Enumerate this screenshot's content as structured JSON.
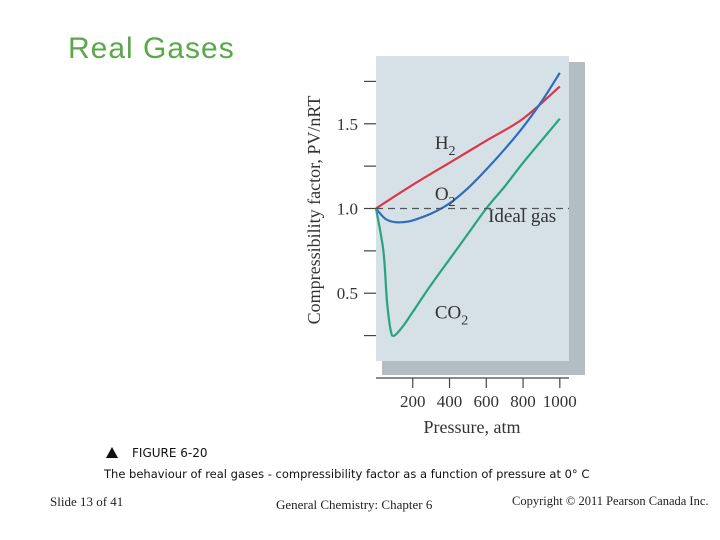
{
  "slide": {
    "title": "Real Gases",
    "figure_label": "FIGURE 6-20",
    "caption": "The behaviour of real gases - compressibility factor as a function of pressure at 0° C",
    "footer_left": "Slide 13 of 41",
    "footer_center": "General Chemistry: Chapter 6",
    "footer_right": "Copyright © 2011 Pearson Canada Inc."
  },
  "colors": {
    "title": "#5aa84a",
    "plot_bg": "#d6e0e7",
    "plot_shadow": "#b3bdc4",
    "H2": "#d93848",
    "O2": "#2a6fb9",
    "CO2": "#27a37f",
    "ideal": "#555555"
  },
  "chart_data": {
    "type": "line",
    "title": "",
    "xlabel": "Pressure, atm",
    "ylabel": "Compressibility factor, PV/nRT",
    "xlim": [
      0,
      1050
    ],
    "ylim": [
      0.1,
      1.9
    ],
    "xticks": [
      200,
      400,
      600,
      800,
      1000
    ],
    "yticks": [
      0.5,
      1.0,
      1.5
    ],
    "ytick_labels": [
      "0.5",
      "1.0",
      "1.5"
    ],
    "ytick_minor": [
      0.25,
      0.75,
      1.25,
      1.75
    ],
    "grid": false,
    "legend": "inline labels",
    "series": [
      {
        "name": "H2",
        "label_main": "H",
        "label_sub": "2",
        "color_key": "H2",
        "label_at": [
          320,
          1.35
        ],
        "x": [
          0,
          200,
          400,
          600,
          800,
          1000
        ],
        "y": [
          1.0,
          1.14,
          1.27,
          1.4,
          1.53,
          1.72
        ]
      },
      {
        "name": "O2",
        "label_main": "O",
        "label_sub": "2",
        "color_key": "O2",
        "label_at": [
          320,
          1.05
        ],
        "x": [
          0,
          50,
          100,
          150,
          200,
          300,
          400,
          500,
          600,
          700,
          800,
          900,
          1000
        ],
        "y": [
          1.0,
          0.94,
          0.92,
          0.92,
          0.93,
          0.97,
          1.03,
          1.12,
          1.23,
          1.35,
          1.48,
          1.63,
          1.8
        ]
      },
      {
        "name": "CO2",
        "label_main": "CO",
        "label_sub": "2",
        "color_key": "CO2",
        "label_at": [
          320,
          0.35
        ],
        "x": [
          0,
          40,
          60,
          80,
          100,
          150,
          200,
          300,
          400,
          500,
          600,
          700,
          800,
          900,
          1000
        ],
        "y": [
          1.0,
          0.75,
          0.45,
          0.28,
          0.25,
          0.31,
          0.39,
          0.55,
          0.7,
          0.85,
          1.0,
          1.13,
          1.27,
          1.4,
          1.53
        ]
      },
      {
        "name": "Ideal gas",
        "label_main": "Ideal gas",
        "label_sub": "",
        "color_key": "ideal",
        "dashed": true,
        "label_at": [
          610,
          0.92
        ],
        "x": [
          0,
          1050
        ],
        "y": [
          1.0,
          1.0
        ]
      }
    ]
  }
}
